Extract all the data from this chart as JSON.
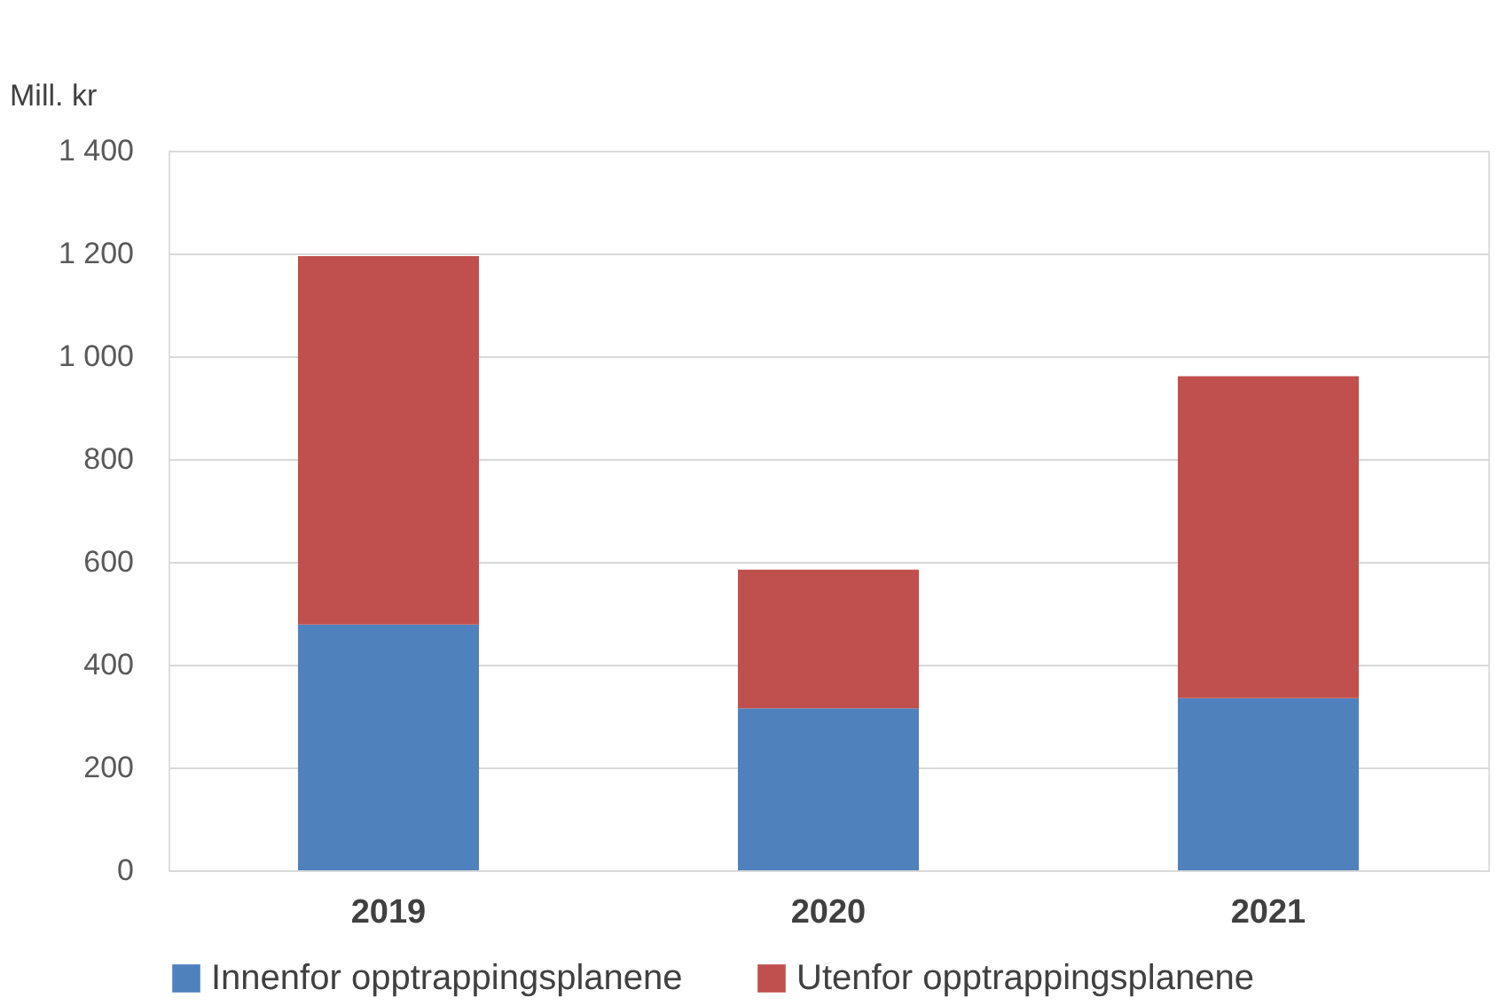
{
  "chart_data": {
    "type": "bar",
    "ylabel": "Mill. kr",
    "categories": [
      "2019",
      "2020",
      "2021"
    ],
    "stacked": true,
    "series": [
      {
        "name": "Innenfor opptrappingsplanene",
        "color": "#4f81bd",
        "values": [
          478,
          315,
          335
        ]
      },
      {
        "name": "Utenfor opptrappingsplanene",
        "color": "#c0504d",
        "values": [
          717,
          270,
          626
        ]
      }
    ],
    "ylim": [
      0,
      1400
    ],
    "yticks": [
      0,
      200,
      400,
      600,
      800,
      {
        "value": 1000,
        "label": "1 000"
      },
      {
        "value": 1200,
        "label": "1 200"
      },
      {
        "value": 1400,
        "label": "1 400"
      }
    ],
    "grid": "y",
    "legend": "bottom"
  }
}
